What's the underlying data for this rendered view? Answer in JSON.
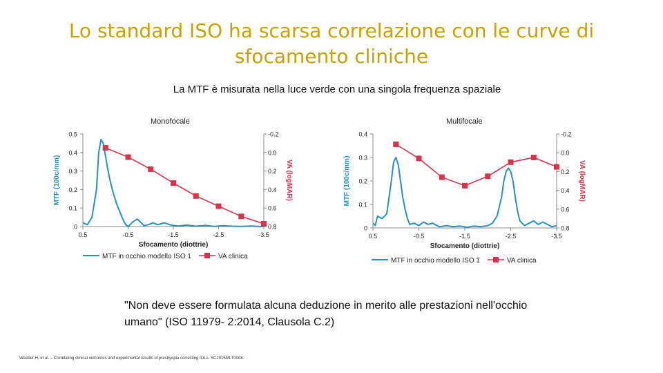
{
  "slide": {
    "title": "Lo standard ISO ha scarsa correlazione con le curve di sfocamento cliniche",
    "subtitle": "La MTF è misurata nella luce verde con una singola frequenza spaziale",
    "quote": "\"Non deve essere formulata alcuna deduzione in merito alle prestazioni nell'occhio umano\" (ISO 11979- 2:2014, Clausola C.2)",
    "citation": "Weeber H, et al. – Correlating clinical outcomes and experimental results of presbyopia correcting IOLs. SC2015MLT0008."
  },
  "colors": {
    "mtf": "#2a8fbd",
    "va": "#d9324a",
    "axis": "#888888",
    "title": "#c9a100"
  },
  "chart_data": [
    {
      "type": "line",
      "panel_label": "Monofocale",
      "xlabel": "Sfocamento (diottrie)",
      "ylabel": "MTF (100c/mm)",
      "y2label": "VA (logMAR)",
      "xlim": [
        0.5,
        -3.5
      ],
      "ylim": [
        0,
        0.5
      ],
      "y2lim": [
        -0.2,
        0.8
      ],
      "x_ticks": [
        "0.5",
        "-0.5",
        "-1.5",
        "-2.5",
        "-3.5"
      ],
      "x_tick_values": [
        0.5,
        -0.5,
        -1.5,
        -2.5,
        -3.5
      ],
      "y_ticks": [
        "0",
        "0.1",
        "0.2",
        "0.3",
        "0.4",
        "0.5"
      ],
      "y_tick_values": [
        0,
        0.1,
        0.2,
        0.3,
        0.4,
        0.5
      ],
      "y2_ticks": [
        "-0.2",
        "0.0",
        "0.2",
        "0.4",
        "0.6",
        "0.8"
      ],
      "y2_tick_values": [
        -0.2,
        0,
        0.2,
        0.4,
        0.6,
        0.8
      ],
      "legend": [
        "MTF in occhio modello ISO 1",
        "VA clinica"
      ],
      "series": [
        {
          "name": "MTF in occhio modello ISO 1",
          "axis": "left",
          "style": "line",
          "x": [
            0.5,
            0.4,
            0.3,
            0.2,
            0.15,
            0.1,
            0.05,
            0.0,
            -0.05,
            -0.1,
            -0.15,
            -0.2,
            -0.25,
            -0.3,
            -0.35,
            -0.4,
            -0.45,
            -0.5,
            -0.6,
            -0.7,
            -0.75,
            -0.85,
            -0.95,
            -1.05,
            -1.15,
            -1.3,
            -1.45,
            -1.6,
            -1.8,
            -2.0,
            -2.2,
            -2.4,
            -2.6,
            -2.8,
            -3.0,
            -3.2,
            -3.35,
            -3.5
          ],
          "y": [
            0.02,
            0.01,
            0.05,
            0.2,
            0.4,
            0.47,
            0.45,
            0.38,
            0.31,
            0.25,
            0.2,
            0.16,
            0.12,
            0.09,
            0.06,
            0.03,
            0.01,
            0.0,
            0.025,
            0.04,
            0.03,
            0.005,
            0.01,
            0.02,
            0.01,
            0.02,
            0.008,
            0.003,
            0.008,
            0.002,
            0.006,
            0.001,
            0.005,
            0.002,
            0.001,
            0.003,
            0.001,
            0.0
          ]
        },
        {
          "name": "VA clinica",
          "axis": "right",
          "style": "line-markers",
          "x": [
            0.0,
            -0.5,
            -1.0,
            -1.5,
            -2.0,
            -2.5,
            -3.0,
            -3.5
          ],
          "y": [
            -0.05,
            0.05,
            0.18,
            0.33,
            0.47,
            0.58,
            0.69,
            0.77
          ]
        }
      ]
    },
    {
      "type": "line",
      "panel_label": "Multifocale",
      "xlabel": "Sfocamento (diottrie)",
      "ylabel": "MTF (100c/mm)",
      "y2label": "VA (logMAR)",
      "xlim": [
        0.5,
        -3.5
      ],
      "ylim": [
        0,
        0.4
      ],
      "y2lim": [
        -0.2,
        0.8
      ],
      "x_ticks": [
        "0.5",
        "-0.5",
        "-1.5",
        "-2.5",
        "-3.5"
      ],
      "x_tick_values": [
        0.5,
        -0.5,
        -1.5,
        -2.5,
        -3.5
      ],
      "y_ticks": [
        "0",
        "0.1",
        "0.2",
        "0.3",
        "0.4"
      ],
      "y_tick_values": [
        0,
        0.1,
        0.2,
        0.3,
        0.4
      ],
      "y2_ticks": [
        "-0.2",
        "0.0",
        "0.2",
        "0.4",
        "0.6",
        "0.8"
      ],
      "y2_tick_values": [
        -0.2,
        0,
        0.2,
        0.4,
        0.6,
        0.8
      ],
      "legend": [
        "MTF in occhio modello ISO 1",
        "VA clinica"
      ],
      "series": [
        {
          "name": "MTF in occhio modello ISO 1",
          "axis": "left",
          "style": "line",
          "x": [
            0.5,
            0.45,
            0.4,
            0.3,
            0.2,
            0.1,
            0.05,
            0.0,
            -0.05,
            -0.1,
            -0.15,
            -0.2,
            -0.25,
            -0.3,
            -0.4,
            -0.5,
            -0.6,
            -0.7,
            -0.8,
            -0.95,
            -1.1,
            -1.25,
            -1.4,
            -1.55,
            -1.7,
            -1.85,
            -2.0,
            -2.1,
            -2.2,
            -2.3,
            -2.35,
            -2.4,
            -2.45,
            -2.5,
            -2.55,
            -2.6,
            -2.65,
            -2.7,
            -2.8,
            -2.9,
            -3.0,
            -3.1,
            -3.2,
            -3.3,
            -3.4,
            -3.5
          ],
          "y": [
            0.02,
            0.01,
            0.05,
            0.04,
            0.06,
            0.2,
            0.28,
            0.3,
            0.27,
            0.2,
            0.13,
            0.08,
            0.04,
            0.015,
            0.02,
            0.01,
            0.025,
            0.015,
            0.02,
            0.005,
            0.01,
            0.005,
            0.008,
            0.003,
            0.008,
            0.005,
            0.01,
            0.02,
            0.05,
            0.13,
            0.2,
            0.24,
            0.255,
            0.24,
            0.2,
            0.13,
            0.07,
            0.03,
            0.01,
            0.02,
            0.03,
            0.015,
            0.025,
            0.015,
            0.005,
            0.01
          ]
        },
        {
          "name": "VA clinica",
          "axis": "right",
          "style": "line-markers",
          "x": [
            0.0,
            -0.5,
            -1.0,
            -1.5,
            -2.0,
            -2.5,
            -3.0,
            -3.5
          ],
          "y": [
            -0.09,
            0.06,
            0.26,
            0.35,
            0.25,
            0.1,
            0.05,
            0.15
          ]
        }
      ]
    }
  ]
}
